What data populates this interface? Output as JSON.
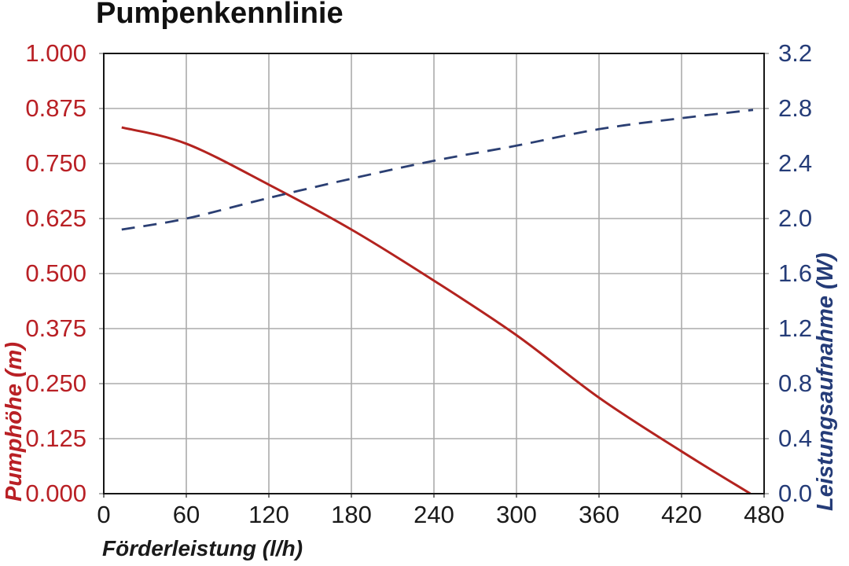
{
  "chart_data": {
    "type": "line",
    "title": "Pumpenkennlinie",
    "grid": true,
    "legend": "none",
    "background": "#ffffff",
    "grid_color": "#ababab",
    "border_color": "#161616",
    "x_axis": {
      "label": "Förderleistung (l/h)",
      "min": 0,
      "max": 480,
      "tick_step": 60,
      "ticks": [
        0,
        60,
        120,
        180,
        240,
        300,
        360,
        420,
        480
      ],
      "text_color": "#1a1a1a"
    },
    "y_axis_left": {
      "label": "Pumphöhe (m)",
      "min": 0.0,
      "max": 1.0,
      "tick_step": 0.125,
      "ticks": [
        "1.000",
        "0.875",
        "0.750",
        "0.625",
        "0.500",
        "0.375",
        "0.250",
        "0.125",
        "0.000"
      ],
      "text_color": "#b92025"
    },
    "y_axis_right": {
      "label": "Leistungsaufnahme (W)",
      "min": 0.0,
      "max": 3.2,
      "tick_step": 0.4,
      "ticks": [
        "3.2",
        "2.8",
        "2.4",
        "2.0",
        "1.6",
        "1.2",
        "0.8",
        "0.4",
        "0.0"
      ],
      "text_color": "#253c78"
    },
    "series": [
      {
        "name": "Pumphöhe",
        "axis": "left",
        "style": "solid",
        "color": "#b3231f",
        "points": [
          [
            13,
            0.832
          ],
          [
            60,
            0.795
          ],
          [
            120,
            0.702
          ],
          [
            180,
            0.6
          ],
          [
            240,
            0.484
          ],
          [
            300,
            0.36
          ],
          [
            360,
            0.218
          ],
          [
            420,
            0.096
          ],
          [
            470,
            0.0
          ]
        ]
      },
      {
        "name": "Leistungsaufnahme",
        "axis": "right",
        "style": "dashed",
        "color": "#2b3f73",
        "points": [
          [
            13,
            1.92
          ],
          [
            60,
            2.0
          ],
          [
            120,
            2.15
          ],
          [
            180,
            2.29
          ],
          [
            240,
            2.42
          ],
          [
            300,
            2.53
          ],
          [
            360,
            2.65
          ],
          [
            420,
            2.73
          ],
          [
            472,
            2.79
          ]
        ]
      }
    ]
  }
}
